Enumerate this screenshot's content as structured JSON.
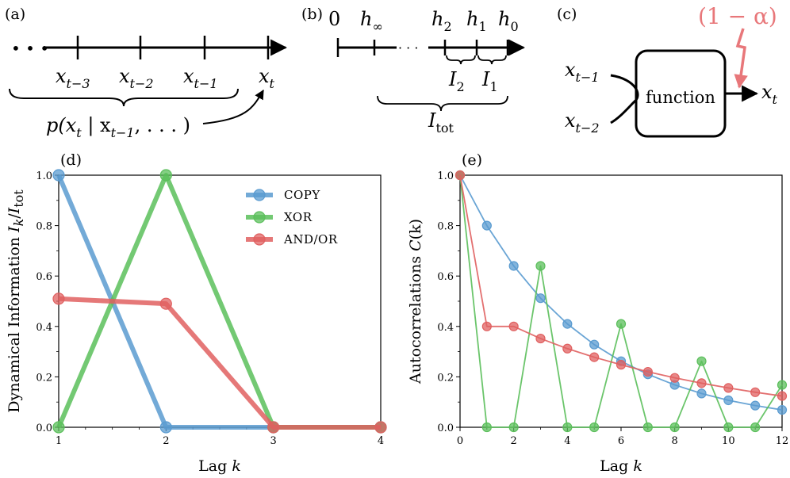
{
  "panels": {
    "a": {
      "label": "(a)",
      "dots": "• • •",
      "ticks": [
        {
          "base": "x",
          "sub": "t−3"
        },
        {
          "base": "x",
          "sub": "t−2"
        },
        {
          "base": "x",
          "sub": "t−1"
        },
        {
          "base": "x",
          "sub": "t"
        }
      ],
      "formula": {
        "pre": "p(x",
        "sub1": "t",
        "mid": " | x",
        "sub2": "t−1",
        "post": ", . . . )"
      }
    },
    "b": {
      "label": "(b)",
      "zero": "0",
      "h_inf": {
        "base": "h",
        "sub": "∞"
      },
      "dots": "· · ·",
      "h_labels": [
        {
          "base": "h",
          "sub": "2"
        },
        {
          "base": "h",
          "sub": "1"
        },
        {
          "base": "h",
          "sub": "0"
        }
      ],
      "I_labels": [
        {
          "base": "I",
          "sub": "2"
        },
        {
          "base": "I",
          "sub": "1"
        }
      ],
      "I_tot": {
        "base": "I",
        "sub": "tot"
      }
    },
    "c": {
      "label": "(c)",
      "noise": "(1 − α)",
      "noise_color": "#e8777a",
      "box_label": "function",
      "inputs": [
        {
          "base": "x",
          "sub": "t−1"
        },
        {
          "base": "x",
          "sub": "t−2"
        }
      ],
      "output": {
        "base": "x",
        "sub": "t"
      }
    }
  },
  "chart_data": [
    {
      "panel_label": "(d)",
      "type": "line",
      "ylabel": {
        "text": "Dynamical Information ",
        "i1": "I",
        "s1": "k",
        "slash": "/",
        "i2": "I",
        "s2": "tot"
      },
      "xlabel": {
        "text": "Lag ",
        "var": "k"
      },
      "xlim": [
        1,
        4
      ],
      "ylim": [
        0,
        1
      ],
      "x": [
        1,
        2,
        3,
        4
      ],
      "x_ticks": [
        "1",
        "2",
        "3",
        "4"
      ],
      "y_ticks": [
        "0.0",
        "0.2",
        "0.4",
        "0.6",
        "0.8",
        "1.0"
      ],
      "legend_position": "top-right",
      "series": [
        {
          "name": "COPY",
          "color": "#5a9bd0",
          "values": [
            1.0,
            0.0,
            0.0,
            0.0
          ]
        },
        {
          "name": "XOR",
          "color": "#5bbf5b",
          "values": [
            0.0,
            1.0,
            0.0,
            0.0
          ]
        },
        {
          "name": "AND/OR",
          "color": "#e06060",
          "values": [
            0.51,
            0.49,
            0.0,
            0.0
          ]
        }
      ]
    },
    {
      "panel_label": "(e)",
      "type": "line",
      "ylabel": {
        "text": "Autocorrelations ",
        "var": "C",
        "arg": "(k)"
      },
      "xlabel": {
        "text": "Lag ",
        "var": "k"
      },
      "xlim": [
        0,
        12
      ],
      "ylim": [
        0,
        1
      ],
      "x": [
        0,
        1,
        2,
        3,
        4,
        5,
        6,
        7,
        8,
        9,
        10,
        11,
        12
      ],
      "x_ticks": [
        "0",
        "2",
        "4",
        "6",
        "8",
        "10",
        "12"
      ],
      "y_ticks": [
        "0.0",
        "0.2",
        "0.4",
        "0.6",
        "0.8",
        "1.0"
      ],
      "series": [
        {
          "color": "#5a9bd0",
          "values": [
            1.0,
            0.8,
            0.64,
            0.512,
            0.41,
            0.328,
            0.262,
            0.21,
            0.168,
            0.134,
            0.107,
            0.086,
            0.069
          ]
        },
        {
          "color": "#5bbf5b",
          "values": [
            1.0,
            0.0,
            0.0,
            0.64,
            0.0,
            0.0,
            0.41,
            0.0,
            0.0,
            0.262,
            0.0,
            0.0,
            0.168
          ]
        },
        {
          "color": "#e06060",
          "values": [
            1.0,
            0.4,
            0.4,
            0.352,
            0.312,
            0.278,
            0.248,
            0.22,
            0.196,
            0.175,
            0.156,
            0.139,
            0.124
          ]
        }
      ]
    }
  ]
}
